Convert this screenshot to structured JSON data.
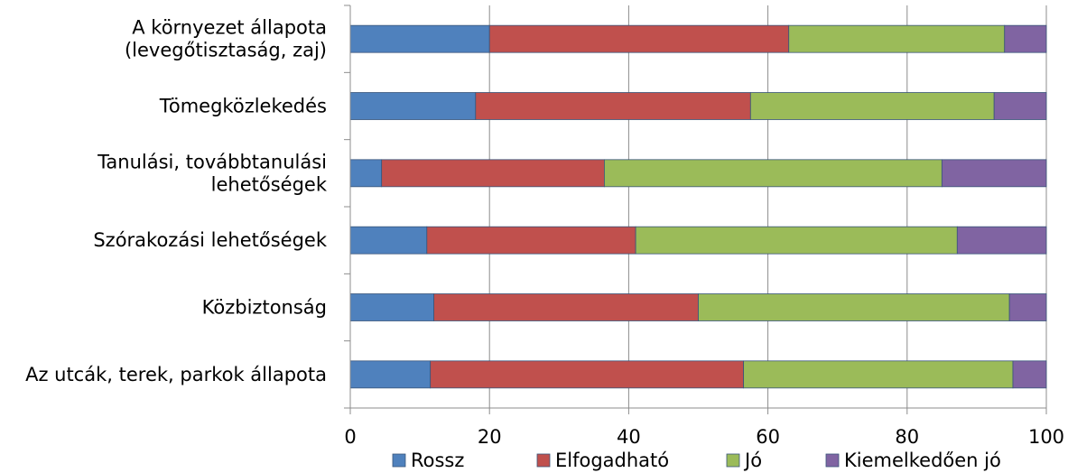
{
  "chart_data": {
    "type": "bar",
    "orientation": "horizontal",
    "stacked": true,
    "categories": [
      [
        "A környezet állapota",
        "(levegőtisztaság, zaj)"
      ],
      [
        "Tömegközlekedés"
      ],
      [
        "Tanulási, továbbtanulási",
        "lehetőségek"
      ],
      [
        "Szórakozási lehetőségek"
      ],
      [
        "Közbiztonság"
      ],
      [
        "Az utcák, terek, parkok állapota"
      ]
    ],
    "series": [
      {
        "name": "Rossz",
        "color": "#4f81bd",
        "values": [
          20,
          18,
          4.5,
          11,
          12,
          11.5
        ]
      },
      {
        "name": "Elfogadható",
        "color": "#c0504d",
        "values": [
          43,
          39.5,
          32,
          30,
          38,
          45
        ]
      },
      {
        "name": "Jó",
        "color": "#9bbb59",
        "values": [
          31,
          35,
          48.5,
          46.2,
          44.7,
          38.7
        ]
      },
      {
        "name": "Kiemelkedően jó",
        "color": "#8064a2",
        "values": [
          6,
          7.5,
          15,
          12.8,
          5.3,
          4.8
        ]
      }
    ],
    "xlim": [
      0,
      100
    ],
    "xticks": [
      0,
      20,
      40,
      60,
      80,
      100
    ],
    "xtick_labels": [
      "0",
      "20",
      "40",
      "60",
      "80",
      "100"
    ],
    "grid": "vertical",
    "legend_position": "bottom"
  }
}
